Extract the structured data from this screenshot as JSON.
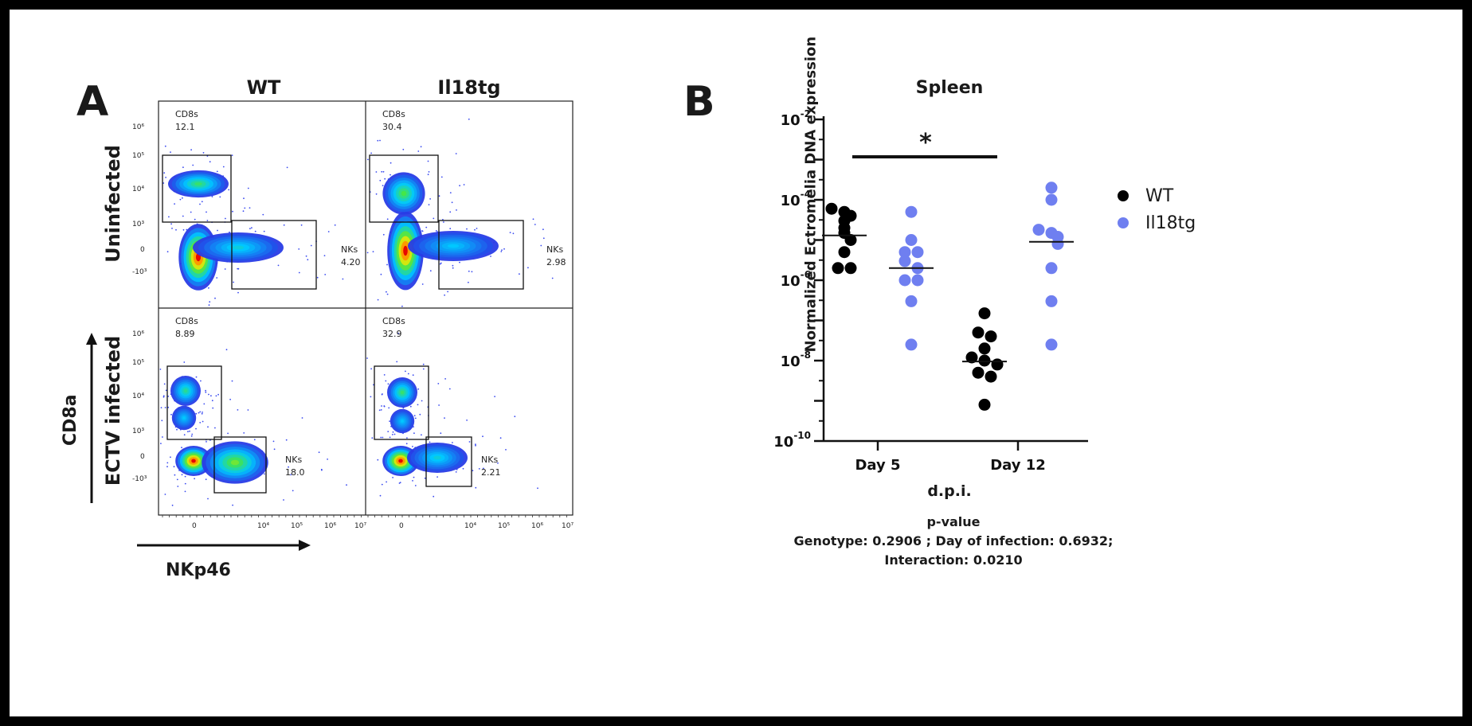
{
  "panel_a": {
    "letter": "A",
    "columns": [
      "WT",
      "Il18tg"
    ],
    "rows": [
      "Uninfected",
      "ECTV infected"
    ],
    "y_axis_name": "CD8a",
    "x_axis_name": "NKp46",
    "y_ticks": [
      "10⁶",
      "10⁵",
      "10⁴",
      "10³",
      "0",
      "-10³"
    ],
    "x_ticks": [
      "0",
      "10⁴",
      "10⁵",
      "10⁶",
      "10⁷"
    ],
    "plots": [
      {
        "cd8_label": "CD8s",
        "cd8_value": "12.1",
        "nk_label": "NKs",
        "nk_value": "4.20"
      },
      {
        "cd8_label": "CD8s",
        "cd8_value": "30.4",
        "nk_label": "NKs",
        "nk_value": "2.98"
      },
      {
        "cd8_label": "CD8s",
        "cd8_value": "8.89",
        "nk_label": "NKs",
        "nk_value": "18.0"
      },
      {
        "cd8_label": "CD8s",
        "cd8_value": "32.9",
        "nk_label": "NKs",
        "nk_value": "2.21"
      }
    ]
  },
  "panel_b": {
    "letter": "B",
    "significance": "*",
    "pvalue": {
      "title": "p-value",
      "line1": "Genotype: 0.2906 ; Day of infection: 0.6932;",
      "line2": "Interaction: 0.0210"
    }
  },
  "colors": {
    "wt": "#000000",
    "il18tg": "#6f7ff0"
  },
  "chart_data": {
    "type": "scatter",
    "title": "Spleen",
    "xlabel": "d.p.i.",
    "ylabel": "Normalized Ectromelia DNA expression",
    "yscale": "log",
    "ylim": [
      1e-10,
      0.01
    ],
    "y_tick_exponents": [
      -2,
      -4,
      -6,
      -8,
      -10
    ],
    "categories": [
      "Day 5",
      "Day 12"
    ],
    "legend_position": "right",
    "series": [
      {
        "name": "WT",
        "color": "#000000",
        "points": [
          {
            "x": "Day 5",
            "values": [
              6e-05,
              5e-05,
              4e-05,
              3e-05,
              2e-05,
              1.5e-05,
              1e-05,
              5e-06,
              2e-06,
              2e-06
            ],
            "median": 1.3e-05
          },
          {
            "x": "Day 12",
            "values": [
              1.5e-07,
              5e-08,
              4e-08,
              2e-08,
              1.2e-08,
              1e-08,
              8e-09,
              5e-09,
              4e-09,
              8e-10
            ],
            "median": 9.5e-09
          }
        ]
      },
      {
        "name": "Il18tg",
        "color": "#6f7ff0",
        "points": [
          {
            "x": "Day 5",
            "values": [
              5e-05,
              1e-05,
              5e-06,
              5e-06,
              3e-06,
              2e-06,
              1e-06,
              1e-06,
              3e-07,
              2.5e-08
            ],
            "median": 2e-06
          },
          {
            "x": "Day 12",
            "values": [
              0.0002,
              0.0001,
              1.8e-05,
              1.5e-05,
              1.2e-05,
              8e-06,
              2e-06,
              3e-07,
              2.5e-08
            ],
            "median": 9e-06
          }
        ]
      }
    ]
  }
}
